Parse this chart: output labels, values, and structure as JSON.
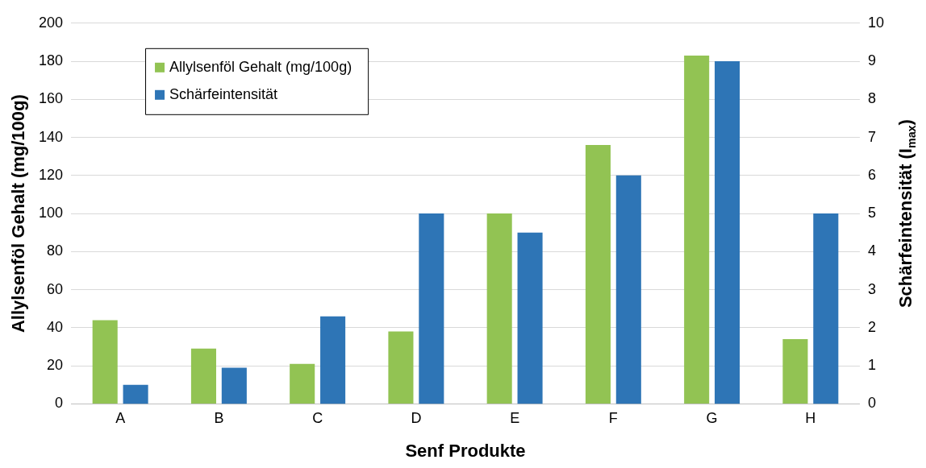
{
  "chart_data": {
    "type": "bar",
    "xlabel": "Senf Produkte",
    "ylabel": "Allylsenföl Gehalt (mg/100g)",
    "y2label": "Schärfeintensität (I$_{max}$)",
    "categories": [
      "A",
      "B",
      "C",
      "D",
      "E",
      "F",
      "G",
      "H"
    ],
    "series": [
      {
        "name": "Allylsenföl Gehalt (mg/100g)",
        "color": "#92c353",
        "values": [
          44,
          29,
          21,
          38,
          100,
          136,
          183,
          34
        ]
      },
      {
        "name": "Schärfeintensität",
        "color": "#2e75b6",
        "axis": "y2",
        "values": [
          0.5,
          0.95,
          2.3,
          5.0,
          4.5,
          6.0,
          9.0,
          5.0
        ]
      }
    ],
    "ylim": [
      0,
      200
    ],
    "yticks": [
      0,
      20,
      40,
      60,
      80,
      100,
      120,
      140,
      160,
      180,
      200
    ],
    "y2lim": [
      0,
      10
    ],
    "y2ticks": [
      0,
      1,
      2,
      3,
      4,
      5,
      6,
      7,
      8,
      9,
      10
    ],
    "grid": "y",
    "legend": "top left"
  }
}
